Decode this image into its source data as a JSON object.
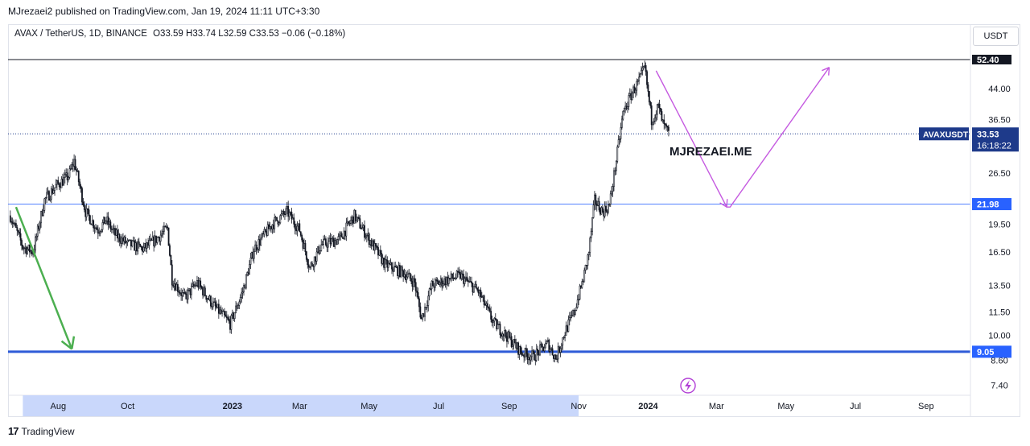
{
  "header": {
    "published": "MJrezaei2 published on TradingView.com, Jan 19, 2024 11:11 UTC+3:30"
  },
  "legend": {
    "symbol": "AVAX / TetherUS, 1D, BINANCE",
    "ohlc": "O33.59  H33.74  L32.59  C33.53  −0.06 (−0.18%)"
  },
  "currency_button": "USDT",
  "footer": {
    "brand": "TradingView",
    "logo": "17"
  },
  "watermark": "MJREZAEI.ME",
  "colors": {
    "up": "#131722",
    "down": "#131722",
    "hline": "#2962ff",
    "support_line": "#2e5bd8",
    "green_arrow": "#4caf50",
    "violet_path": "#c55ae0",
    "price_tag": "#1e3a8a",
    "axis_highlight": "#c9d7fb"
  },
  "chart_data": {
    "type": "candlestick",
    "symbol": "AVAXUSDT",
    "y_scale": "log",
    "ylim": [
      7.0,
      55.0
    ],
    "y_ticks": [
      7.4,
      8.6,
      10.0,
      11.5,
      13.5,
      16.5,
      19.5,
      26.5,
      36.5,
      44.0
    ],
    "x_ticks": [
      "Aug",
      "Oct",
      "2023",
      "Mar",
      "May",
      "Jul",
      "Sep",
      "Nov",
      "2024",
      "Mar",
      "May",
      "Jul",
      "Sep"
    ],
    "price_labels": {
      "top": "52.40",
      "symbol_tag": "AVAXUSDT",
      "last": "33.53",
      "countdown": "16:18:22",
      "resistance": "21.98",
      "support": "9.05"
    },
    "horizontal_lines": [
      {
        "value": 52.4,
        "style": "thin-black"
      },
      {
        "value": 21.98,
        "style": "thin-blue"
      },
      {
        "value": 9.05,
        "style": "thick-blue"
      },
      {
        "value": 33.53,
        "style": "dotted-price"
      }
    ],
    "close_series": [
      {
        "d": "2022-06-20",
        "c": 20.5
      },
      {
        "d": "2022-07-01",
        "c": 17.0
      },
      {
        "d": "2022-07-10",
        "c": 16.5
      },
      {
        "d": "2022-07-20",
        "c": 22.5
      },
      {
        "d": "2022-07-30",
        "c": 24.5
      },
      {
        "d": "2022-08-10",
        "c": 26.0
      },
      {
        "d": "2022-08-15",
        "c": 28.5
      },
      {
        "d": "2022-08-25",
        "c": 21.0
      },
      {
        "d": "2022-09-05",
        "c": 18.8
      },
      {
        "d": "2022-09-12",
        "c": 20.0
      },
      {
        "d": "2022-09-20",
        "c": 18.3
      },
      {
        "d": "2022-10-01",
        "c": 17.3
      },
      {
        "d": "2022-10-15",
        "c": 16.8
      },
      {
        "d": "2022-10-25",
        "c": 17.7
      },
      {
        "d": "2022-11-05",
        "c": 19.0
      },
      {
        "d": "2022-11-09",
        "c": 14.0
      },
      {
        "d": "2022-11-20",
        "c": 12.5
      },
      {
        "d": "2022-12-01",
        "c": 13.7
      },
      {
        "d": "2022-12-15",
        "c": 12.0
      },
      {
        "d": "2022-12-30",
        "c": 10.7
      },
      {
        "d": "2023-01-10",
        "c": 13.0
      },
      {
        "d": "2023-01-20",
        "c": 16.8
      },
      {
        "d": "2023-02-05",
        "c": 19.5
      },
      {
        "d": "2023-02-18",
        "c": 21.0
      },
      {
        "d": "2023-03-01",
        "c": 18.8
      },
      {
        "d": "2023-03-10",
        "c": 15.0
      },
      {
        "d": "2023-03-20",
        "c": 17.2
      },
      {
        "d": "2023-04-05",
        "c": 17.8
      },
      {
        "d": "2023-04-18",
        "c": 20.5
      },
      {
        "d": "2023-05-01",
        "c": 17.8
      },
      {
        "d": "2023-05-15",
        "c": 15.3
      },
      {
        "d": "2023-06-01",
        "c": 14.5
      },
      {
        "d": "2023-06-10",
        "c": 13.7
      },
      {
        "d": "2023-06-16",
        "c": 11.0
      },
      {
        "d": "2023-06-25",
        "c": 13.5
      },
      {
        "d": "2023-07-10",
        "c": 14.0
      },
      {
        "d": "2023-07-20",
        "c": 14.3
      },
      {
        "d": "2023-08-05",
        "c": 13.0
      },
      {
        "d": "2023-08-18",
        "c": 10.8
      },
      {
        "d": "2023-09-01",
        "c": 9.8
      },
      {
        "d": "2023-09-12",
        "c": 9.0
      },
      {
        "d": "2023-09-22",
        "c": 8.8
      },
      {
        "d": "2023-10-05",
        "c": 9.5
      },
      {
        "d": "2023-10-12",
        "c": 8.7
      },
      {
        "d": "2023-10-20",
        "c": 10.2
      },
      {
        "d": "2023-10-28",
        "c": 11.5
      },
      {
        "d": "2023-11-05",
        "c": 14.0
      },
      {
        "d": "2023-11-10",
        "c": 16.5
      },
      {
        "d": "2023-11-15",
        "c": 22.5
      },
      {
        "d": "2023-11-22",
        "c": 21.0
      },
      {
        "d": "2023-11-28",
        "c": 21.8
      },
      {
        "d": "2023-12-05",
        "c": 30.0
      },
      {
        "d": "2023-12-10",
        "c": 38.0
      },
      {
        "d": "2023-12-18",
        "c": 43.0
      },
      {
        "d": "2023-12-24",
        "c": 46.0
      },
      {
        "d": "2023-12-29",
        "c": 50.0
      },
      {
        "d": "2024-01-04",
        "c": 36.5
      },
      {
        "d": "2024-01-10",
        "c": 39.5
      },
      {
        "d": "2024-01-14",
        "c": 35.5
      },
      {
        "d": "2024-01-19",
        "c": 33.53
      }
    ],
    "drawings": [
      {
        "type": "arrow",
        "color": "green",
        "from": {
          "d": "2022-06-25",
          "v": 21.6
        },
        "to": {
          "d": "2022-08-13",
          "v": 9.2
        }
      },
      {
        "type": "path-arrow",
        "color": "violet",
        "points": [
          {
            "d": "2024-01-08",
            "v": 49.0
          },
          {
            "d": "2024-03-10",
            "v": 21.6
          },
          {
            "d": "2024-03-13",
            "v": 21.6
          },
          {
            "d": "2024-06-08",
            "v": 50.0
          }
        ]
      }
    ]
  }
}
